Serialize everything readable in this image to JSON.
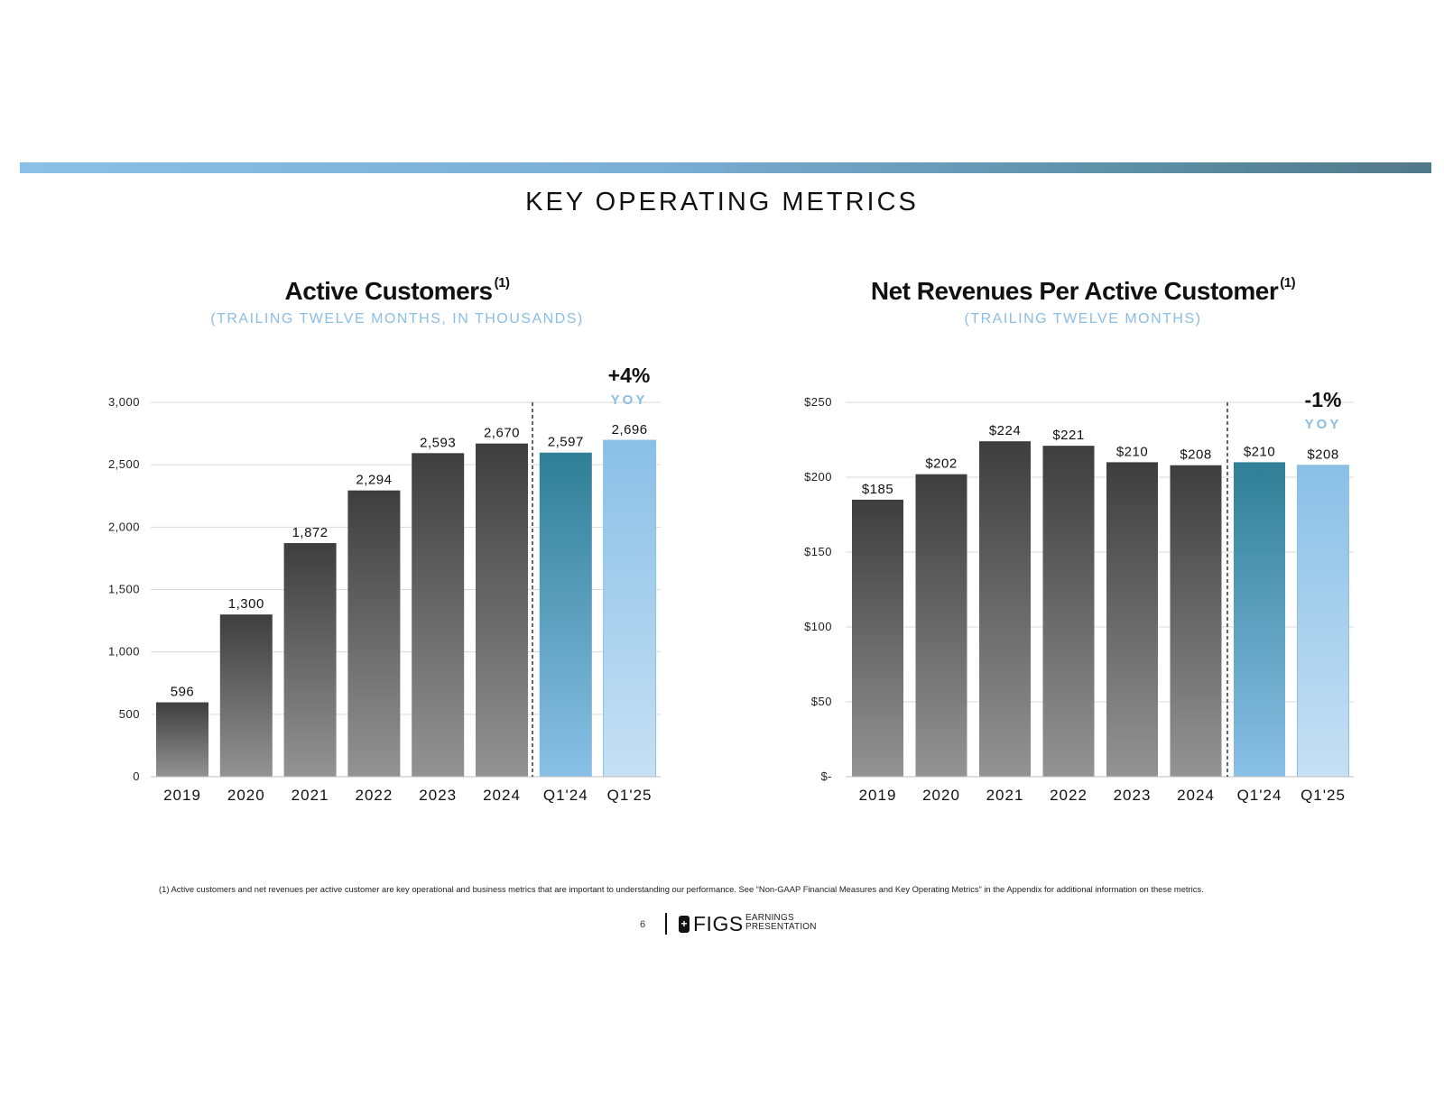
{
  "page": {
    "title": "KEY OPERATING METRICS",
    "footnote": "(1) Active customers and net revenues per active customer are key operational and business metrics that are important to understanding our performance. See “Non-GAAP Financial Measures and Key Operating Metrics” in the Appendix for additional information on these metrics.",
    "page_number": "6",
    "logo_text": "FIGS",
    "tagline_1": "EARNINGS",
    "tagline_2": "PRESENTATION"
  },
  "colors": {
    "accent_bar_start": "#8ac0e6",
    "accent_bar_end": "#52798a",
    "subtitle": "#8cbde3",
    "bar_dark_top": "#3e3e3e",
    "bar_dark_bottom": "#939393",
    "q124_top": "#2f7f96",
    "q124_bottom": "#8ac0e6",
    "q125_top": "#8ac0e6",
    "q125_bottom": "#c6e0f4"
  },
  "chart_data": [
    {
      "type": "bar",
      "title": "Active Customers",
      "title_note": "(1)",
      "subtitle": "(TRAILING TWELVE MONTHS, IN THOUSANDS)",
      "categories": [
        "2019",
        "2020",
        "2021",
        "2022",
        "2023",
        "2024",
        "Q1'24",
        "Q1'25"
      ],
      "values": [
        596,
        1300,
        1872,
        2294,
        2593,
        2670,
        2597,
        2696
      ],
      "value_labels": [
        "596",
        "1,300",
        "1,872",
        "2,294",
        "2,593",
        "2,670",
        "2,597",
        "2,696"
      ],
      "ylim": [
        0,
        3000
      ],
      "yticks": [
        0,
        500,
        1000,
        1500,
        2000,
        2500,
        3000
      ],
      "ytick_labels": [
        "0",
        "500",
        "1,000",
        "1,500",
        "2,000",
        "2,500",
        "3,000"
      ],
      "grid": true,
      "annotation": {
        "value": "+4%",
        "label": "YOY"
      }
    },
    {
      "type": "bar",
      "title": "Net Revenues Per Active Customer",
      "title_note": "(1)",
      "subtitle": "(TRAILING TWELVE MONTHS)",
      "categories": [
        "2019",
        "2020",
        "2021",
        "2022",
        "2023",
        "2024",
        "Q1'24",
        "Q1'25"
      ],
      "values": [
        185,
        202,
        224,
        221,
        210,
        208,
        210,
        208
      ],
      "value_labels": [
        "$185",
        "$202",
        "$224",
        "$221",
        "$210",
        "$208",
        "$210",
        "$208"
      ],
      "ylim": [
        0,
        250
      ],
      "yticks": [
        0,
        50,
        100,
        150,
        200,
        250
      ],
      "ytick_labels": [
        "$-",
        "$50",
        "$100",
        "$150",
        "$200",
        "$250"
      ],
      "grid": true,
      "annotation": {
        "value": "-1%",
        "label": "YOY"
      }
    }
  ]
}
